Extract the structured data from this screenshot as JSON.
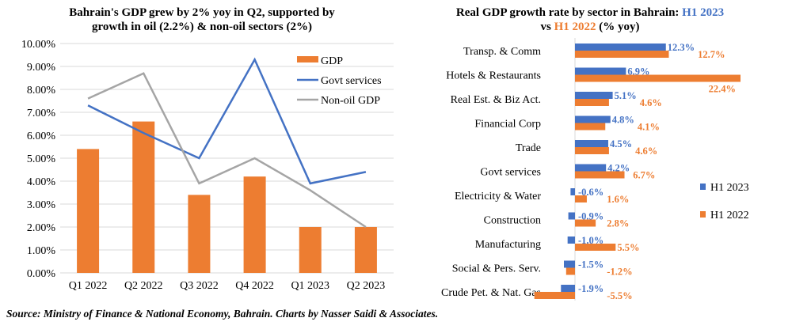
{
  "source": "Source: Ministry of Finance & National Economy, Bahrain. Charts by Nasser Saidi & Associates.",
  "chart_data": [
    {
      "type": "bar+line",
      "title_lines": [
        "Bahrain's GDP grew by 2% yoy in Q2, supported by",
        "growth in oil (2.2%) & non-oil sectors (2%)"
      ],
      "categories": [
        "Q1 2022",
        "Q2 2022",
        "Q3 2022",
        "Q4 2022",
        "Q1 2023",
        "Q2 2023"
      ],
      "ylim": [
        0,
        10
      ],
      "yticks": [
        "0.00%",
        "1.00%",
        "2.00%",
        "3.00%",
        "4.00%",
        "5.00%",
        "6.00%",
        "7.00%",
        "8.00%",
        "9.00%",
        "10.00%"
      ],
      "grid": true,
      "legend_placement": "top-right",
      "series": [
        {
          "name": "GDP",
          "kind": "bar",
          "color": "#ED7D31",
          "values": [
            5.4,
            6.6,
            3.4,
            4.2,
            2.0,
            2.0
          ]
        },
        {
          "name": "Govt services",
          "kind": "line",
          "color": "#4472C4",
          "values": [
            7.3,
            6.1,
            5.0,
            9.3,
            3.9,
            4.4
          ]
        },
        {
          "name": "Non-oil GDP",
          "kind": "line",
          "color": "#A5A5A5",
          "values": [
            7.6,
            8.7,
            3.9,
            5.0,
            3.6,
            2.0
          ]
        }
      ]
    },
    {
      "type": "bar",
      "orientation": "horizontal",
      "title_line1": "Real GDP growth rate by sector in Bahrain: ",
      "title_h1_2023": "H1 2023",
      "title_line2_pre": "vs ",
      "title_h1_2022": "H1 2022",
      "title_line2_post": " (% yoy)",
      "title_accent_blue": "#4472C4",
      "title_accent_orange": "#ED7D31",
      "legend_placement": "right",
      "categories": [
        "Transp. & Comm",
        "Hotels & Restaurants",
        "Real Est. & Biz Act.",
        "Financial Corp",
        "Trade",
        "Govt services",
        "Electricity & Water",
        "Construction",
        "Manufacturing",
        "Social & Pers. Serv.",
        "Crude Pet. & Nat. Gas"
      ],
      "series": [
        {
          "name": "H1 2023",
          "color": "#4472C4",
          "values": [
            12.3,
            6.9,
            5.1,
            4.8,
            4.5,
            4.2,
            -0.6,
            -0.9,
            -1.0,
            -1.5,
            -1.9
          ]
        },
        {
          "name": "H1 2022",
          "color": "#ED7D31",
          "values": [
            12.7,
            22.4,
            4.6,
            4.1,
            4.6,
            6.7,
            1.6,
            2.8,
            5.5,
            -1.2,
            -5.5
          ]
        }
      ]
    }
  ]
}
